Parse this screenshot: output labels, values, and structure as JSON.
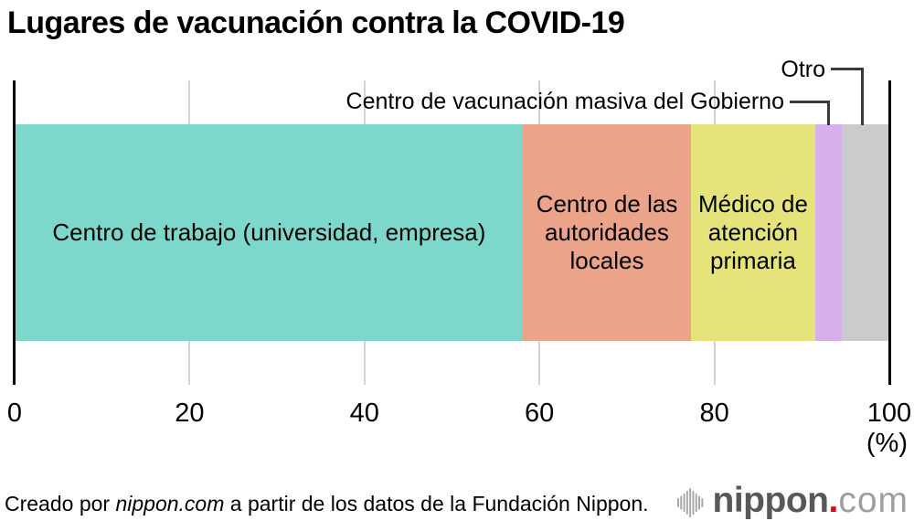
{
  "title": "Lugares de vacunación contra la COVID-19",
  "chart_data": {
    "type": "bar",
    "orientation": "horizontal-stacked",
    "title": "Lugares de vacunación contra la COVID-19",
    "unit": "(%)",
    "xlim": [
      0,
      100
    ],
    "ticks": [
      0,
      20,
      40,
      60,
      80,
      100
    ],
    "grid": "vertical-light-gray",
    "segments": [
      {
        "label": "Centro de trabajo (universidad, empresa)",
        "value": 58.1,
        "color": "#7dd8cc",
        "label_position": "inside"
      },
      {
        "label": "Centro de las\nautoridades\nlocales",
        "value": 19.3,
        "color": "#eba489",
        "label_position": "inside"
      },
      {
        "label": "Médico de\natención\nprimaria",
        "value": 14.2,
        "color": "#e5e47a",
        "label_position": "inside"
      },
      {
        "label": "Centro de vacunación masiva del Gobierno",
        "value": 3.1,
        "color": "#d5b0ec",
        "label_position": "callout-above"
      },
      {
        "label": "Otro",
        "value": 5.3,
        "color": "#cbcbcb",
        "label_position": "callout-above"
      }
    ],
    "axis_color": "#000000",
    "gridline_color": "#d3d3d3",
    "leader_line_color": "#3a3a3a"
  },
  "footer": {
    "credit_prefix": "Creado por ",
    "credit_source": "nippon.com",
    "credit_suffix": " a partir de los datos de la Fundación Nippon.",
    "logo": {
      "icon": "audio-bars-icon",
      "name": "nippon",
      "dot": ".",
      "tld": "com",
      "name_color": "#595757",
      "dot_color": "#e60012",
      "tld_color": "#9e9e9e",
      "bars_color": "#a5a5a5"
    }
  }
}
